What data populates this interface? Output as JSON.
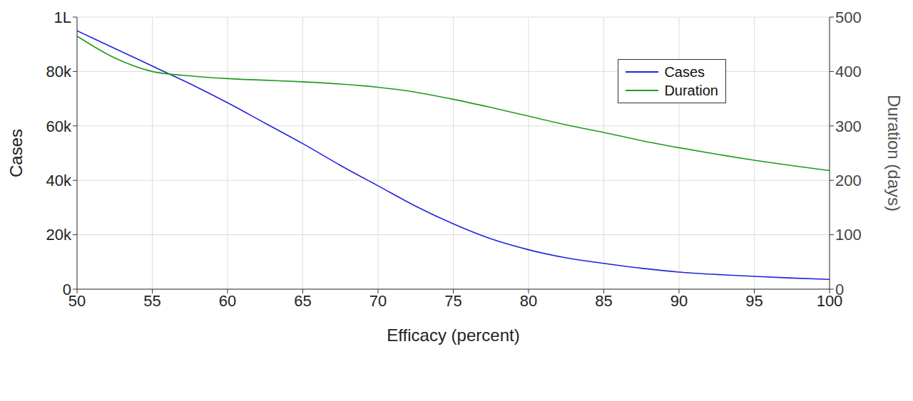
{
  "chart_data": {
    "type": "line",
    "x_label": "Efficacy (percent)",
    "y_label": "Cases",
    "y2_label": "Duration (days)",
    "x": [
      50,
      52.5,
      55,
      57.5,
      60,
      62.5,
      65,
      67.5,
      70,
      72.5,
      75,
      77.5,
      80,
      82.5,
      85,
      87.5,
      90,
      92.5,
      95,
      97.5,
      100
    ],
    "series": [
      {
        "name": "Cases",
        "color": "#2222dd",
        "values": [
          95000,
          88500,
          82000,
          75500,
          68500,
          61000,
          53500,
          45500,
          38000,
          30500,
          24000,
          18500,
          14500,
          11500,
          9500,
          7700,
          6300,
          5400,
          4700,
          4100,
          3600
        ]
      },
      {
        "name": "Duration",
        "color": "#1f9a1f",
        "axis": "y2",
        "values": [
          465,
          425,
          400,
          392,
          387,
          384,
          381,
          377,
          371,
          362,
          349,
          334,
          318,
          302,
          288,
          273,
          260,
          248,
          237,
          227,
          218
        ]
      }
    ],
    "xlim": [
      50,
      100
    ],
    "xticks": [
      50,
      55,
      60,
      65,
      70,
      75,
      80,
      85,
      90,
      95,
      100
    ],
    "ylim": [
      0,
      100000
    ],
    "yticks": [
      0,
      {
        "value": 20000,
        "label": "20k"
      },
      {
        "value": 40000,
        "label": "40k"
      },
      {
        "value": 60000,
        "label": "60k"
      },
      {
        "value": 80000,
        "label": "80k"
      },
      {
        "value": 100000,
        "label": "1L"
      }
    ],
    "y2lim": [
      0,
      500
    ],
    "y2ticks": [
      0,
      100,
      200,
      300,
      400,
      500
    ],
    "grid": true,
    "legend": "upper right"
  }
}
